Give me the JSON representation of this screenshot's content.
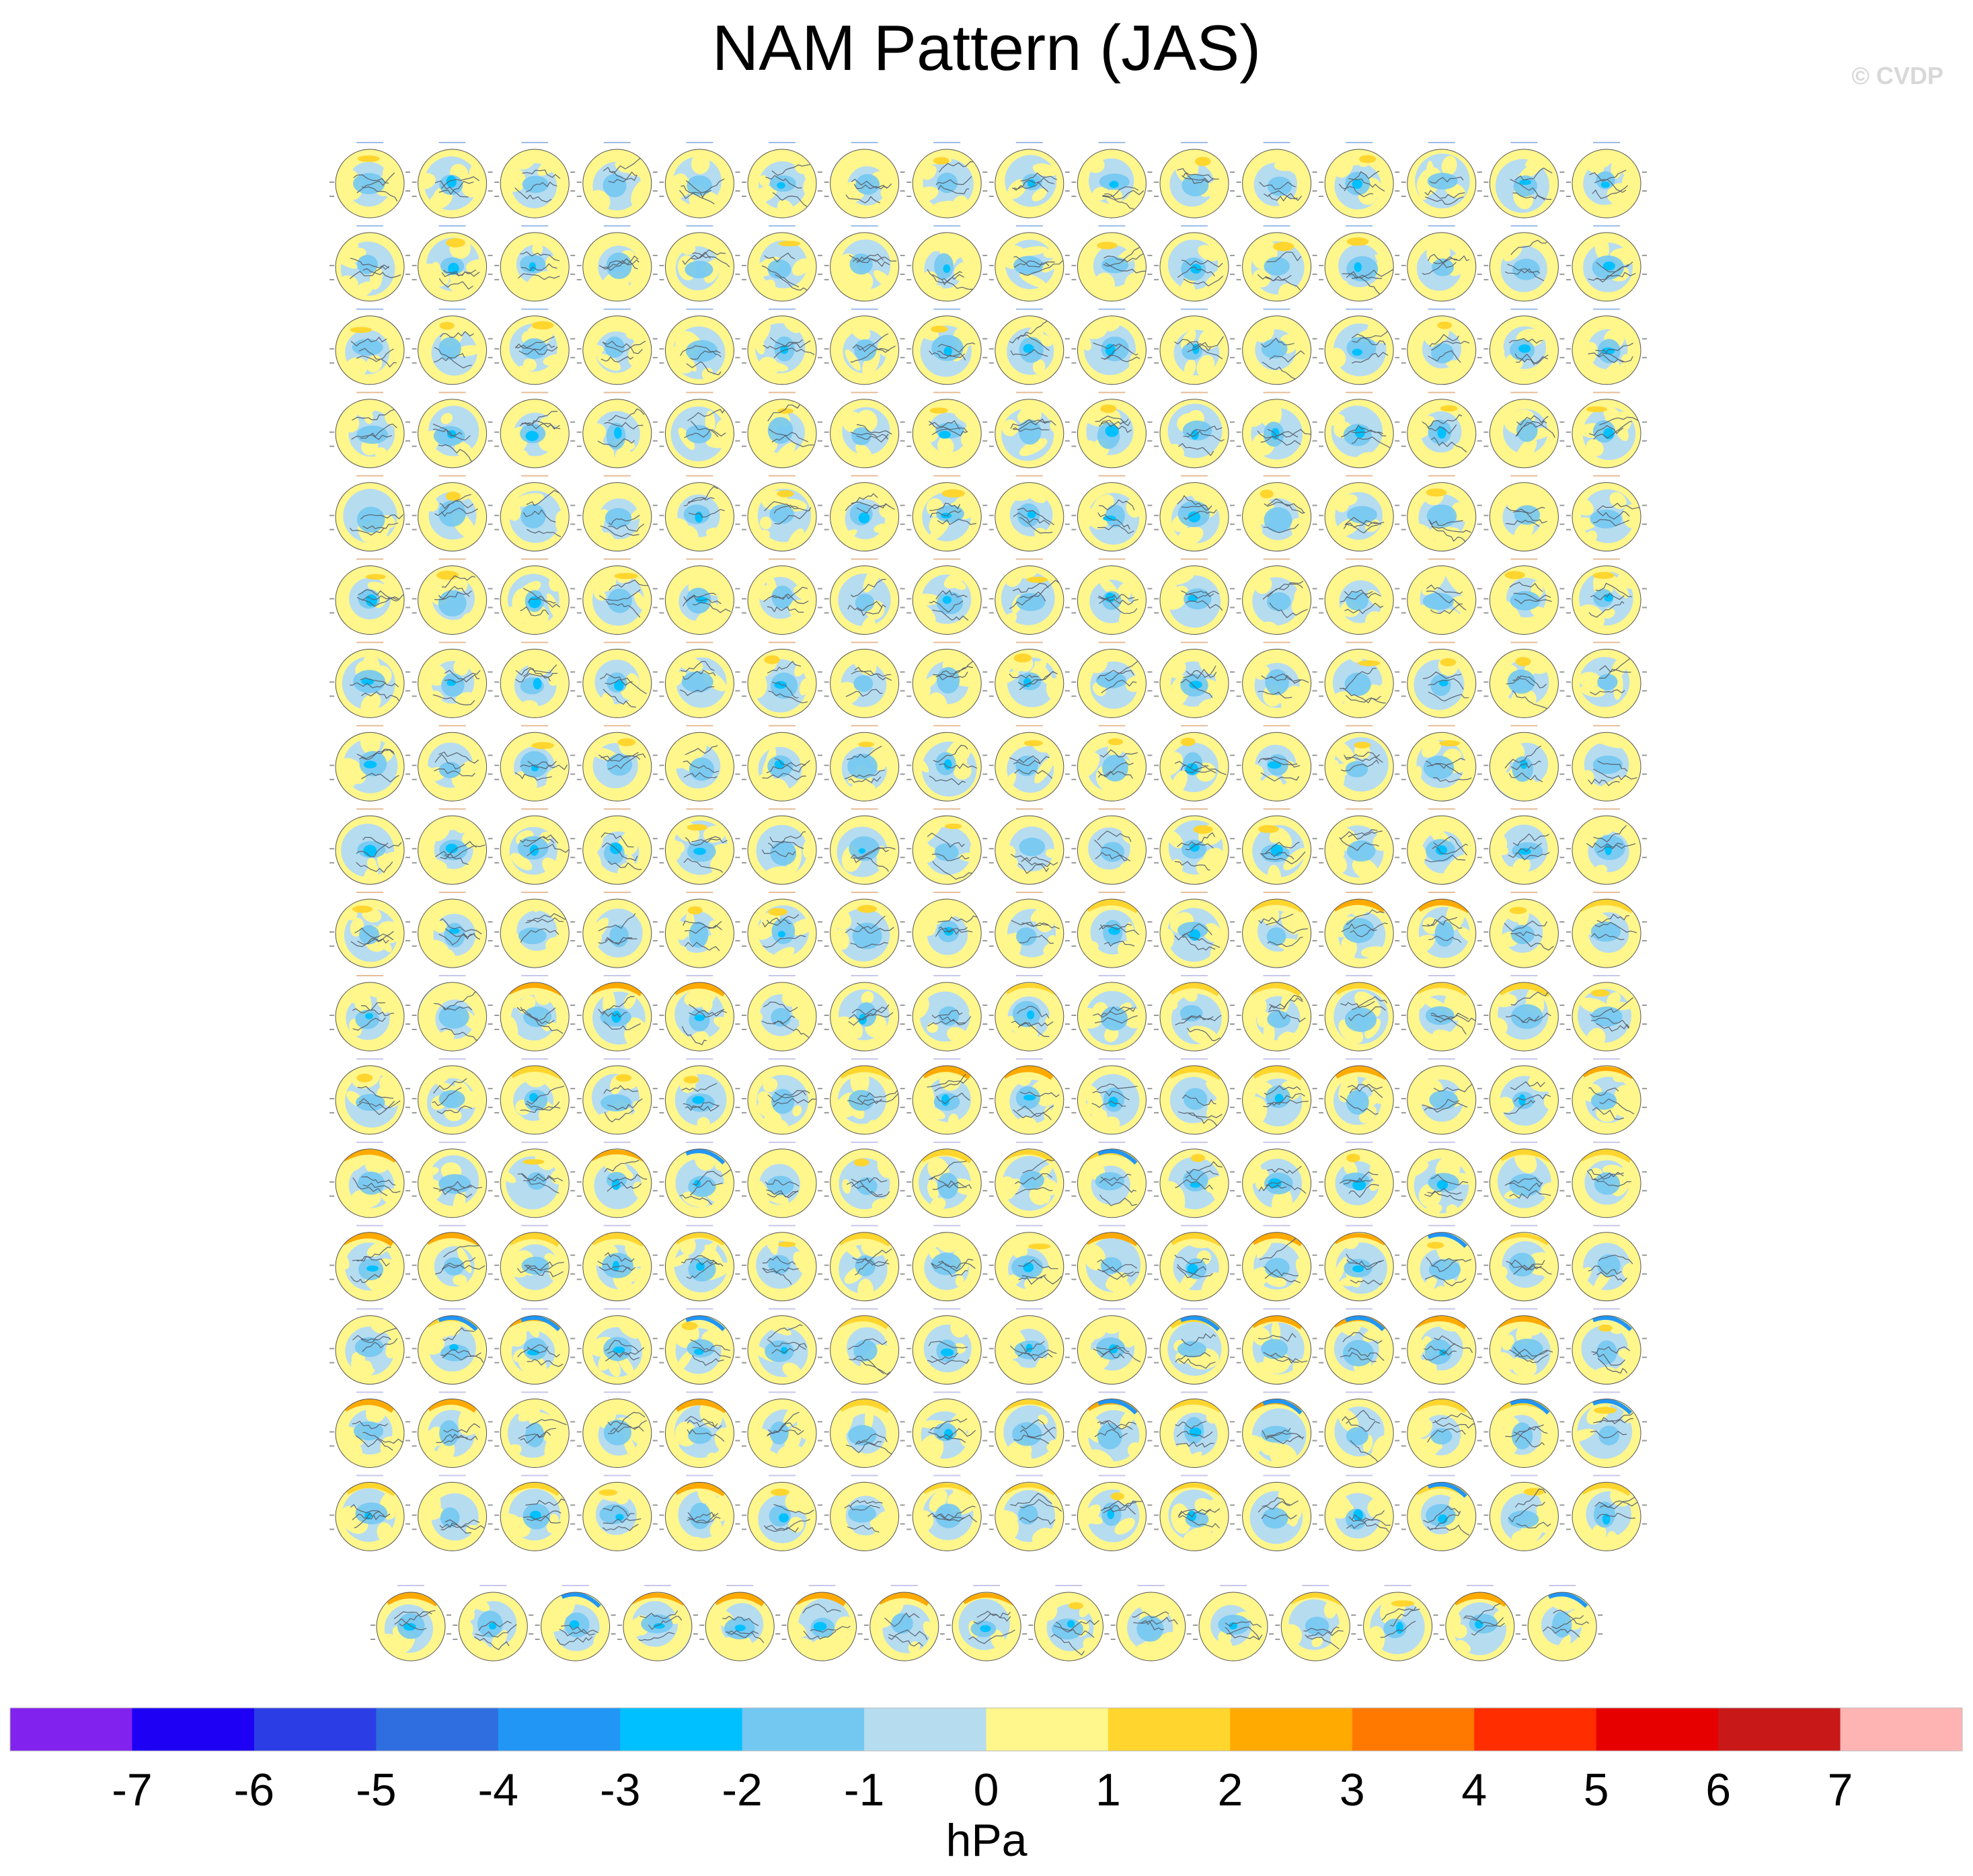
{
  "title": "NAM Pattern (JAS)",
  "watermark": "© CVDP",
  "chart_data": {
    "type": "heatmap",
    "title": "NAM Pattern (JAS)",
    "description_type": "panel grid of polar-stereographic NAM regression maps (Northern Hemisphere)",
    "grid": {
      "rows_full": 17,
      "cols_full": 16,
      "last_row_panels": 15
    },
    "panel_count": 287,
    "colorbar": {
      "label": "hPa",
      "ticks": [
        "-7",
        "-6",
        "-5",
        "-4",
        "-3",
        "-2",
        "-1",
        "0",
        "1",
        "2",
        "3",
        "4",
        "5",
        "6",
        "7"
      ],
      "levels": [
        -7,
        -6,
        -5,
        -4,
        -3,
        -2,
        -1,
        0,
        1,
        2,
        3,
        4,
        5,
        6,
        7
      ],
      "colors": [
        "#8222ee",
        "#1e00f5",
        "#2b3ee6",
        "#2e6ee0",
        "#2196f5",
        "#00c0ff",
        "#73c8f2",
        "#b6dcf0",
        "#fff68c",
        "#ffd52e",
        "#ffaa00",
        "#ff7800",
        "#ff2d00",
        "#e60000",
        "#c81818",
        "#ffb4b4"
      ],
      "range": [
        -8,
        8
      ]
    }
  }
}
